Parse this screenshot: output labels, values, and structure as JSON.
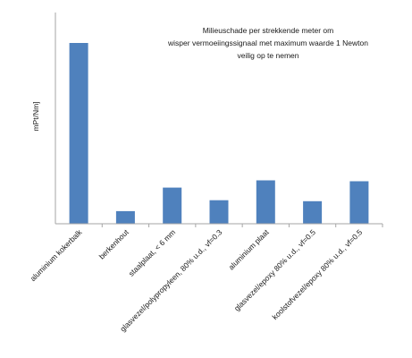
{
  "chart_data": {
    "type": "bar",
    "title_lines": [
      "Milieuschade per strekkende meter om",
      "wisper vermoeiingssignaal met maximum waarde 1 Newton",
      "veilig op te nemen"
    ],
    "ylabel": "mPt/Nm]",
    "xlabel": "",
    "categories": [
      "aluminium kokerbalk",
      "berkenhout",
      "staalplaat, < 6 mm",
      "glasvezel/polypropyleen, 80% u.d., vf=0.3",
      "aluminium plaat",
      "glasvezel/epoxy 80% u.d., vf=0.5",
      "koolstofvezel/epoxy 80% u.d., vf=0.5"
    ],
    "values": [
      1.0,
      0.07,
      0.2,
      0.13,
      0.24,
      0.125,
      0.235
    ],
    "ylim": [
      0,
      1.0
    ],
    "grid": false,
    "legend": "none",
    "bar_color": "#4f81bd",
    "axis_color": "#a6a6a6"
  }
}
